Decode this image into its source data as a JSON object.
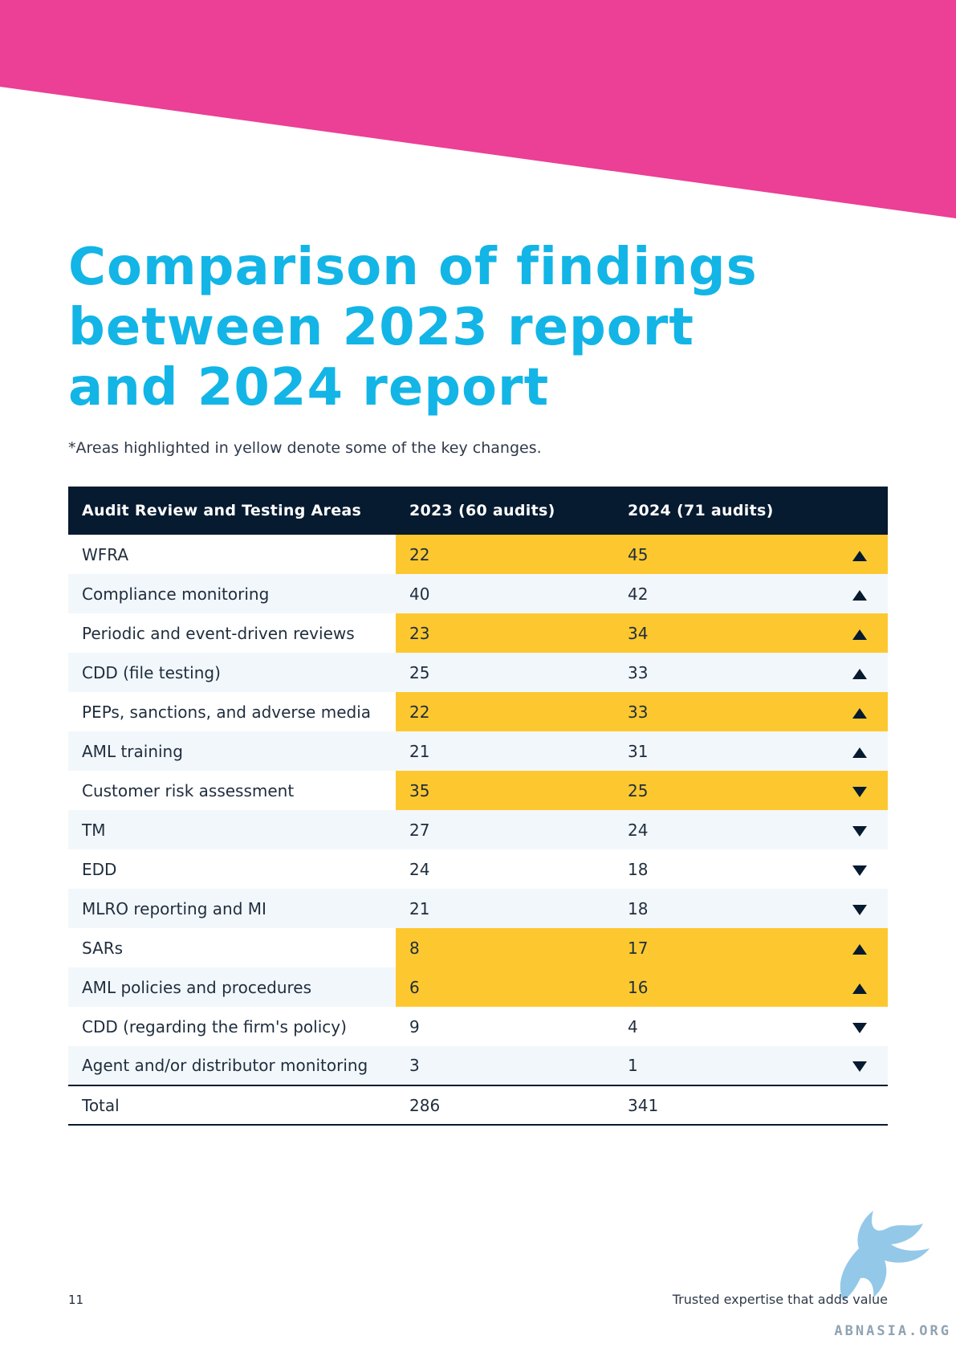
{
  "title_lines": [
    "Comparison of findings",
    "between 2023 report",
    "and 2024 report"
  ],
  "note": "*Areas highlighted in yellow denote some of the key changes.",
  "table": {
    "headers": [
      "Audit Review and Testing Areas",
      "2023 (60 audits)",
      "2024 (71 audits)"
    ],
    "rows": [
      {
        "area": "WFRA",
        "v2023": "22",
        "v2024": "45",
        "trend": "up",
        "highlighted": true
      },
      {
        "area": "Compliance monitoring",
        "v2023": "40",
        "v2024": "42",
        "trend": "up",
        "highlighted": false
      },
      {
        "area": "Periodic and event-driven reviews",
        "v2023": "23",
        "v2024": "34",
        "trend": "up",
        "highlighted": true
      },
      {
        "area": "CDD (file testing)",
        "v2023": "25",
        "v2024": "33",
        "trend": "up",
        "highlighted": false
      },
      {
        "area": "PEPs, sanctions, and adverse media",
        "v2023": "22",
        "v2024": "33",
        "trend": "up",
        "highlighted": true
      },
      {
        "area": "AML training",
        "v2023": "21",
        "v2024": "31",
        "trend": "up",
        "highlighted": false
      },
      {
        "area": "Customer risk assessment",
        "v2023": "35",
        "v2024": "25",
        "trend": "down",
        "highlighted": true
      },
      {
        "area": "TM",
        "v2023": "27",
        "v2024": "24",
        "trend": "down",
        "highlighted": false
      },
      {
        "area": "EDD",
        "v2023": "24",
        "v2024": "18",
        "trend": "down",
        "highlighted": false
      },
      {
        "area": "MLRO reporting and MI",
        "v2023": "21",
        "v2024": "18",
        "trend": "down",
        "highlighted": false
      },
      {
        "area": "SARs",
        "v2023": "8",
        "v2024": "17",
        "trend": "up",
        "highlighted": true
      },
      {
        "area": "AML policies and procedures",
        "v2023": "6",
        "v2024": "16",
        "trend": "up",
        "highlighted": true
      },
      {
        "area": "CDD (regarding the firm's policy)",
        "v2023": "9",
        "v2024": "4",
        "trend": "down",
        "highlighted": false
      },
      {
        "area": "Agent and/or distributor monitoring",
        "v2023": "3",
        "v2024": "1",
        "trend": "down",
        "highlighted": false
      }
    ],
    "total": {
      "label": "Total",
      "v2023": "286",
      "v2024": "341"
    }
  },
  "footer": {
    "page_number": "11",
    "tagline": "Trusted expertise that adds value",
    "watermark_text": "ABNASIA.ORG"
  },
  "colors": {
    "banner_pink": "#ec3f96",
    "title_cyan": "#12b5e6",
    "header_navy": "#061a30",
    "highlight_yellow": "#fdc82f",
    "row_alt": "#f2f7fb"
  },
  "icons": {
    "trend_up": "triangle-up-icon",
    "trend_down": "triangle-down-icon"
  }
}
